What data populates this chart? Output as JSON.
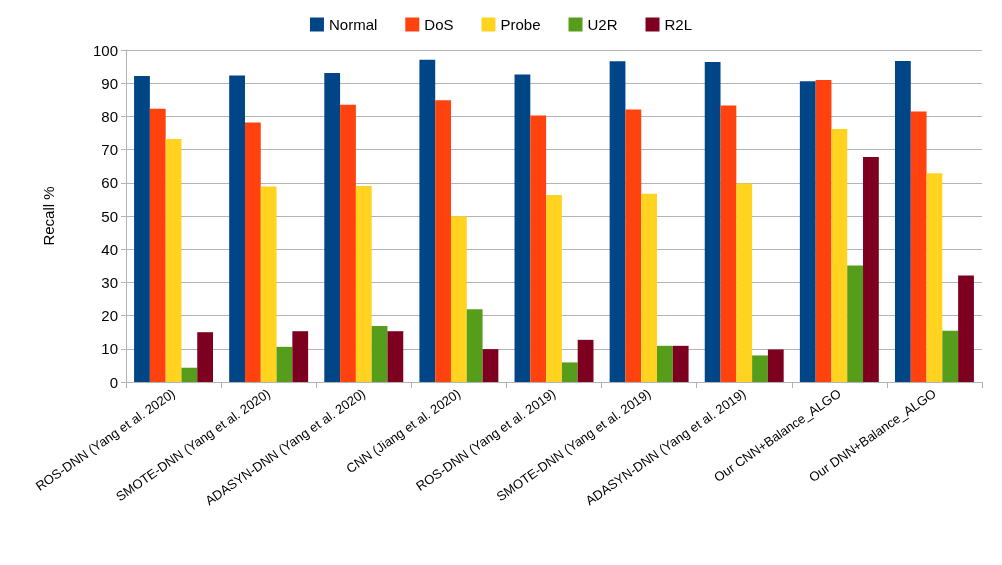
{
  "chart_data": {
    "type": "bar",
    "ylabel": "Recall %",
    "categories": [
      "ROS-DNN (Yang et al. 2020)",
      "SMOTE-DNN (Yang et al. 2020)",
      "ADASYN-DNN (Yang et al. 2020)",
      "CNN (Jiang et al. 2020)",
      "ROS-DNN (Yang et al. 2019)",
      "SMOTE-DNN (Yang et al. 2019)",
      "ADASYN-DNN (Yang et al. 2019)",
      "Our CNN+Balance_ALGO",
      "Our DNN+Balance_ALGO"
    ],
    "series": [
      {
        "name": "Normal",
        "color": "#004586",
        "values": [
          92.2,
          92.3,
          93.1,
          97.1,
          92.6,
          96.6,
          96.4,
          90.6,
          96.7
        ]
      },
      {
        "name": "DoS",
        "color": "#ff420e",
        "values": [
          82.3,
          78.2,
          83.5,
          84.9,
          80.3,
          82.1,
          83.3,
          91.0,
          81.5
        ]
      },
      {
        "name": "Probe",
        "color": "#ffd320",
        "values": [
          73.2,
          58.9,
          59.0,
          49.9,
          56.3,
          56.7,
          59.8,
          76.2,
          62.9
        ]
      },
      {
        "name": "U2R",
        "color": "#579d1c",
        "values": [
          4.3,
          10.6,
          16.9,
          21.9,
          5.9,
          10.9,
          8.0,
          35.1,
          15.4
        ]
      },
      {
        "name": "R2L",
        "color": "#7e0021",
        "values": [
          15.0,
          15.3,
          15.3,
          9.9,
          12.7,
          10.9,
          9.8,
          67.8,
          32.1
        ]
      }
    ],
    "ylim": [
      0,
      100
    ],
    "yticks": [
      0,
      10,
      20,
      30,
      40,
      50,
      60,
      70,
      80,
      90,
      100
    ],
    "grid": "y",
    "legend": "top"
  }
}
